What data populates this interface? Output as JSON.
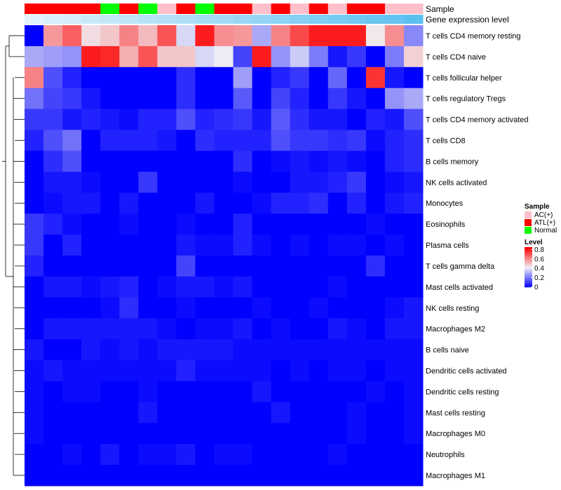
{
  "chart_data": {
    "type": "heatmap",
    "title": "",
    "annotation_labels": {
      "sample": "Sample",
      "gene_expression": "Gene expression level"
    },
    "row_labels": [
      "T cells CD4 memory resting",
      "T cells CD4 naive",
      "T cells follicular helper",
      "T cells regulatory  Tregs",
      "T cells CD4 memory activated",
      "T cells CD8",
      "B cells memory",
      "NK cells activated",
      "Monocytes",
      "Eosinophils",
      "Plasma cells",
      "T cells gamma delta",
      "Mast cells activated",
      "NK cells resting",
      "Macrophages M2",
      "B cells naive",
      "Dendritic cells activated",
      "Dendritic cells resting",
      "Mast cells resting",
      "Macrophages M0",
      "Neutrophils",
      "Macrophages M1"
    ],
    "column_samples": [
      "ATL(+)",
      "ATL(+)",
      "ATL(+)",
      "ATL(+)",
      "Normal",
      "ATL(+)",
      "Normal",
      "AC(+)",
      "ATL(+)",
      "Normal",
      "ATL(+)",
      "ATL(+)",
      "AC(+)",
      "ATL(+)",
      "AC(+)",
      "ATL(+)",
      "AC(+)",
      "ATL(+)",
      "ATL(+)",
      "AC(+)",
      "AC(+)"
    ],
    "gene_expression_levels": [
      0.85,
      0.8,
      0.78,
      0.72,
      0.7,
      0.66,
      0.62,
      0.6,
      0.56,
      0.52,
      0.5,
      0.46,
      0.42,
      0.38,
      0.34,
      0.3,
      0.26,
      0.22,
      0.18,
      0.15,
      0.1
    ],
    "values": [
      [
        0.0,
        0.58,
        0.68,
        0.46,
        0.5,
        0.62,
        0.52,
        0.7,
        0.38,
        0.8,
        0.6,
        0.58,
        0.3,
        0.62,
        0.72,
        0.8,
        0.8,
        0.8,
        0.44,
        0.6,
        0.24
      ],
      [
        0.3,
        0.28,
        0.26,
        0.8,
        0.78,
        0.54,
        0.7,
        0.5,
        0.5,
        0.38,
        0.42,
        0.12,
        0.8,
        0.26,
        0.36,
        0.22,
        0.04,
        0.1,
        0.0,
        0.22,
        0.48
      ],
      [
        0.62,
        0.14,
        0.06,
        0.0,
        0.0,
        0.0,
        0.0,
        0.0,
        0.08,
        0.0,
        0.0,
        0.28,
        0.0,
        0.06,
        0.1,
        0.0,
        0.18,
        0.0,
        0.76,
        0.04,
        0.0
      ],
      [
        0.2,
        0.12,
        0.1,
        0.04,
        0.0,
        0.0,
        0.0,
        0.0,
        0.08,
        0.0,
        0.0,
        0.16,
        0.0,
        0.12,
        0.06,
        0.0,
        0.1,
        0.04,
        0.0,
        0.26,
        0.3
      ],
      [
        0.1,
        0.1,
        0.04,
        0.06,
        0.04,
        0.02,
        0.06,
        0.06,
        0.14,
        0.06,
        0.08,
        0.1,
        0.04,
        0.16,
        0.08,
        0.04,
        0.04,
        0.0,
        0.06,
        0.04,
        0.14
      ],
      [
        0.06,
        0.14,
        0.2,
        0.0,
        0.06,
        0.06,
        0.06,
        0.04,
        0.0,
        0.08,
        0.06,
        0.06,
        0.06,
        0.14,
        0.1,
        0.1,
        0.08,
        0.1,
        0.02,
        0.06,
        0.08
      ],
      [
        0.0,
        0.08,
        0.14,
        0.0,
        0.0,
        0.0,
        0.0,
        0.0,
        0.0,
        0.0,
        0.0,
        0.08,
        0.0,
        0.02,
        0.04,
        0.02,
        0.04,
        0.02,
        0.0,
        0.06,
        0.08
      ],
      [
        0.0,
        0.04,
        0.04,
        0.02,
        0.0,
        0.0,
        0.1,
        0.0,
        0.0,
        0.0,
        0.0,
        0.02,
        0.0,
        0.0,
        0.04,
        0.04,
        0.06,
        0.1,
        0.0,
        0.02,
        0.04
      ],
      [
        0.0,
        0.02,
        0.04,
        0.04,
        0.0,
        0.04,
        0.0,
        0.0,
        0.0,
        0.04,
        0.0,
        0.0,
        0.02,
        0.06,
        0.06,
        0.08,
        0.0,
        0.06,
        0.0,
        0.04,
        0.06
      ],
      [
        0.1,
        0.06,
        0.02,
        0.0,
        0.0,
        0.02,
        0.0,
        0.0,
        0.02,
        0.0,
        0.0,
        0.06,
        0.0,
        0.0,
        0.0,
        0.0,
        0.0,
        0.0,
        0.02,
        0.0,
        0.0
      ],
      [
        0.1,
        0.0,
        0.06,
        0.0,
        0.0,
        0.0,
        0.0,
        0.0,
        0.04,
        0.02,
        0.02,
        0.06,
        0.02,
        0.0,
        0.02,
        0.0,
        0.02,
        0.02,
        0.0,
        0.02,
        0.0
      ],
      [
        0.06,
        0.0,
        0.0,
        0.0,
        0.0,
        0.0,
        0.0,
        0.0,
        0.12,
        0.0,
        0.0,
        0.0,
        0.0,
        0.0,
        0.0,
        0.0,
        0.0,
        0.0,
        0.08,
        0.0,
        0.0
      ],
      [
        0.0,
        0.04,
        0.04,
        0.02,
        0.04,
        0.06,
        0.0,
        0.02,
        0.04,
        0.04,
        0.02,
        0.04,
        0.0,
        0.0,
        0.0,
        0.0,
        0.02,
        0.0,
        0.0,
        0.0,
        0.0
      ],
      [
        0.0,
        0.0,
        0.0,
        0.0,
        0.02,
        0.08,
        0.0,
        0.0,
        0.02,
        0.0,
        0.0,
        0.0,
        0.02,
        0.0,
        0.0,
        0.02,
        0.0,
        0.0,
        0.0,
        0.02,
        0.04
      ],
      [
        0.0,
        0.04,
        0.04,
        0.04,
        0.04,
        0.04,
        0.04,
        0.02,
        0.0,
        0.02,
        0.02,
        0.04,
        0.0,
        0.02,
        0.0,
        0.0,
        0.04,
        0.02,
        0.0,
        0.04,
        0.04
      ],
      [
        0.04,
        0.0,
        0.0,
        0.04,
        0.02,
        0.04,
        0.02,
        0.04,
        0.04,
        0.04,
        0.04,
        0.02,
        0.02,
        0.02,
        0.02,
        0.02,
        0.02,
        0.02,
        0.02,
        0.02,
        0.02
      ],
      [
        0.02,
        0.04,
        0.02,
        0.02,
        0.02,
        0.02,
        0.02,
        0.02,
        0.06,
        0.02,
        0.02,
        0.02,
        0.02,
        0.0,
        0.02,
        0.0,
        0.02,
        0.02,
        0.0,
        0.02,
        0.02
      ],
      [
        0.02,
        0.0,
        0.02,
        0.02,
        0.0,
        0.0,
        0.02,
        0.0,
        0.0,
        0.0,
        0.0,
        0.0,
        0.04,
        0.0,
        0.0,
        0.0,
        0.0,
        0.0,
        0.02,
        0.0,
        0.02
      ],
      [
        0.02,
        0.0,
        0.0,
        0.0,
        0.0,
        0.0,
        0.04,
        0.0,
        0.0,
        0.0,
        0.0,
        0.0,
        0.0,
        0.04,
        0.0,
        0.0,
        0.0,
        0.02,
        0.0,
        0.0,
        0.02
      ],
      [
        0.02,
        0.0,
        0.0,
        0.0,
        0.0,
        0.0,
        0.0,
        0.0,
        0.0,
        0.0,
        0.0,
        0.0,
        0.0,
        0.0,
        0.0,
        0.0,
        0.0,
        0.02,
        0.0,
        0.0,
        0.02
      ],
      [
        0.0,
        0.0,
        0.02,
        0.0,
        0.04,
        0.0,
        0.02,
        0.02,
        0.04,
        0.0,
        0.02,
        0.02,
        0.0,
        0.0,
        0.0,
        0.0,
        0.02,
        0.0,
        0.0,
        0.0,
        0.0
      ],
      [
        0.0,
        0.0,
        0.0,
        0.0,
        0.0,
        0.0,
        0.0,
        0.0,
        0.0,
        0.0,
        0.0,
        0.0,
        0.0,
        0.0,
        0.0,
        0.0,
        0.0,
        0.0,
        0.0,
        0.0,
        0.0
      ]
    ],
    "legend": {
      "sample_title": "Sample",
      "sample_entries": [
        {
          "label": "AC(+)",
          "color": "#FFC0CB"
        },
        {
          "label": "ATL(+)",
          "color": "#FF0000"
        },
        {
          "label": "Normal",
          "color": "#00FF00"
        }
      ],
      "level_title": "Level",
      "level_ticks": [
        "0.8",
        "0.6",
        "0.4",
        "0.2",
        "0"
      ],
      "level_tick_values": [
        0.8,
        0.6,
        0.4,
        0.2,
        0
      ],
      "level_range": [
        0,
        0.85
      ],
      "placement": "right"
    },
    "colors": {
      "low": "#0000FF",
      "mid": "#F0F0F5",
      "high": "#FF0000",
      "gene_expression_low": "#5BC0F0",
      "gene_expression_high": "#E0F2FB"
    }
  }
}
